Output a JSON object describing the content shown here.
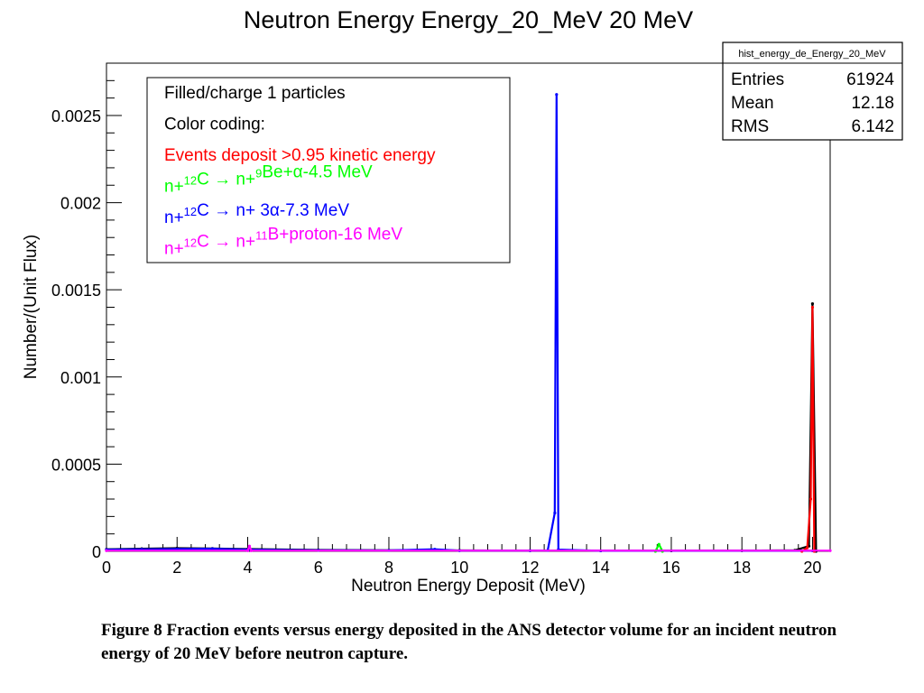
{
  "chart_data": {
    "type": "line",
    "title": "Neutron Energy Energy_20_MeV 20 MeV",
    "xlabel": "Neutron Energy Deposit (MeV)",
    "ylabel": "Number/(Unit Flux)",
    "xlim": [
      0,
      20.5
    ],
    "ylim": [
      0,
      0.0028
    ],
    "x_ticks": [
      "0",
      "2",
      "4",
      "6",
      "8",
      "10",
      "12",
      "14",
      "16",
      "18",
      "20"
    ],
    "y_ticks": [
      "0",
      "0.0005",
      "0.001",
      "0.0015",
      "0.002",
      "0.0025"
    ],
    "stats_box": {
      "name": "hist_energy_de_Energy_20_MeV",
      "rows": [
        {
          "label": "Entries",
          "value": "61924"
        },
        {
          "label": "Mean",
          "value": "12.18"
        },
        {
          "label": "RMS",
          "value": "6.142"
        }
      ]
    },
    "legend": {
      "lines": [
        {
          "text": "Filled/charge 1 particles",
          "color": "#000000"
        },
        {
          "text": "Color coding:",
          "color": "#000000"
        },
        {
          "text": "Events deposit >0.95 kinetic energy",
          "color": "#ff0000"
        },
        {
          "prefix": "n+",
          "sup1": "12",
          "mid1": "C ",
          "arrow": "→",
          "mid2": " n+",
          "sup2": "9",
          "rest": "Be+α-4.5 MeV",
          "color": "#00ff00"
        },
        {
          "prefix": "n+",
          "sup1": "12",
          "mid1": "C ",
          "arrow": "→",
          "mid2": " n+ 3α-7.3 MeV",
          "sup2": "",
          "rest": "",
          "color": "#0000ff"
        },
        {
          "prefix": "n+",
          "sup1": "12",
          "mid1": "C ",
          "arrow": "→",
          "mid2": " n+",
          "sup2": "11",
          "rest": "B+proton-16 MeV",
          "color": "#ff00ff"
        }
      ]
    },
    "series": [
      {
        "color": "#000000",
        "points": [
          [
            0.0,
            1.2e-05
          ],
          [
            1.0,
            1.5e-05
          ],
          [
            2.0,
            1.8e-05
          ],
          [
            3.0,
            1.6e-05
          ],
          [
            4.0,
            1.3e-05
          ],
          [
            6.0,
            8e-06
          ],
          [
            8.0,
            6e-06
          ],
          [
            10.0,
            5e-06
          ],
          [
            12.0,
            4e-06
          ],
          [
            14.0,
            3e-06
          ],
          [
            16.0,
            3e-06
          ],
          [
            18.0,
            4e-06
          ],
          [
            19.5,
            6e-06
          ],
          [
            19.9,
            3e-05
          ],
          [
            20.0,
            0.00142
          ],
          [
            20.1,
            0.0
          ]
        ]
      },
      {
        "color": "#0000ff",
        "points": [
          [
            0.0,
            1e-05
          ],
          [
            1.0,
            1.2e-05
          ],
          [
            2.0,
            1.4e-05
          ],
          [
            3.0,
            1.5e-05
          ],
          [
            4.0,
            1e-05
          ],
          [
            6.0,
            6e-06
          ],
          [
            8.0,
            5e-06
          ],
          [
            9.3,
            1.2e-05
          ],
          [
            10.0,
            4e-06
          ],
          [
            12.0,
            4e-06
          ],
          [
            12.5,
            5e-06
          ],
          [
            12.7,
            0.00022
          ],
          [
            12.75,
            0.00262
          ],
          [
            12.8,
            1e-05
          ],
          [
            14.0,
            3e-06
          ],
          [
            20.0,
            3e-06
          ]
        ]
      },
      {
        "color": "#ff0000",
        "points": [
          [
            19.7,
            0.0
          ],
          [
            19.85,
            2e-05
          ],
          [
            19.95,
            0.0003
          ],
          [
            20.0,
            0.0014
          ],
          [
            20.05,
            0.0
          ]
        ]
      },
      {
        "color": "#00ff00",
        "points": [
          [
            15.55,
            0.0
          ],
          [
            15.65,
            4e-05
          ],
          [
            15.75,
            0.0
          ]
        ]
      },
      {
        "color": "#ff00ff",
        "points": [
          [
            0.0,
            4e-06
          ],
          [
            4.0,
            4e-06
          ],
          [
            4.05,
            3e-05
          ],
          [
            4.1,
            4e-06
          ],
          [
            20.5,
            4e-06
          ]
        ]
      }
    ]
  },
  "caption": "Figure 8 Fraction events versus energy deposited in the ANS detector volume for an incident neutron energy of 20 MeV before neutron capture."
}
